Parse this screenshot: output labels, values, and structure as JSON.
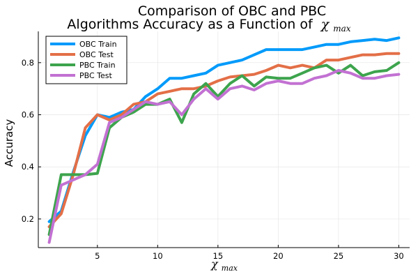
{
  "chart_data": {
    "type": "line",
    "title_line1": "Comparison of OBC and PBC",
    "title_line2": "Algorithms Accuracy as a Function of",
    "title_symbol": "χ",
    "title_symbol_sub": "max",
    "xlabel_symbol": "χ",
    "xlabel_sub": "max",
    "ylabel": "Accuracy",
    "xlim": [
      0.1,
      30.9
    ],
    "ylim": [
      0.09,
      0.92
    ],
    "xticks": [
      5,
      10,
      15,
      20,
      25,
      30
    ],
    "yticks": [
      0.2,
      0.4,
      0.6,
      0.8
    ],
    "xtick_labels": [
      "5",
      "10",
      "15",
      "20",
      "25",
      "30"
    ],
    "ytick_labels": [
      "0.2",
      "0.4",
      "0.6",
      "0.8"
    ],
    "grid": true,
    "legend_position": "top-left",
    "x": [
      1,
      2,
      3,
      4,
      5,
      6,
      7,
      8,
      9,
      10,
      11,
      12,
      13,
      14,
      15,
      16,
      17,
      18,
      19,
      20,
      21,
      22,
      23,
      24,
      25,
      26,
      27,
      28,
      29,
      30
    ],
    "series": [
      {
        "name": "OBC Train",
        "color": "#009AFA",
        "values": [
          0.19,
          0.23,
          0.38,
          0.52,
          0.6,
          0.59,
          0.61,
          0.62,
          0.67,
          0.7,
          0.74,
          0.74,
          0.75,
          0.76,
          0.79,
          0.8,
          0.81,
          0.83,
          0.85,
          0.85,
          0.85,
          0.85,
          0.86,
          0.87,
          0.87,
          0.88,
          0.885,
          0.89,
          0.885,
          0.895
        ]
      },
      {
        "name": "OBC Test",
        "color": "#E36F47",
        "values": [
          0.17,
          0.22,
          0.37,
          0.55,
          0.6,
          0.58,
          0.6,
          0.64,
          0.65,
          0.68,
          0.69,
          0.7,
          0.7,
          0.71,
          0.73,
          0.745,
          0.75,
          0.755,
          0.77,
          0.79,
          0.78,
          0.79,
          0.78,
          0.81,
          0.81,
          0.82,
          0.83,
          0.83,
          0.835,
          0.835
        ]
      },
      {
        "name": "PBC Train",
        "color": "#3DA44D",
        "values": [
          0.14,
          0.37,
          0.37,
          0.37,
          0.375,
          0.55,
          0.59,
          0.61,
          0.64,
          0.64,
          0.66,
          0.57,
          0.68,
          0.72,
          0.67,
          0.72,
          0.75,
          0.71,
          0.745,
          0.74,
          0.74,
          0.76,
          0.78,
          0.79,
          0.76,
          0.79,
          0.75,
          0.765,
          0.77,
          0.8
        ]
      },
      {
        "name": "PBC Test",
        "color": "#C271D2",
        "values": [
          0.11,
          0.33,
          0.35,
          0.37,
          0.41,
          0.57,
          0.59,
          0.62,
          0.65,
          0.64,
          0.65,
          0.6,
          0.66,
          0.7,
          0.66,
          0.7,
          0.71,
          0.695,
          0.72,
          0.73,
          0.72,
          0.72,
          0.74,
          0.75,
          0.77,
          0.76,
          0.74,
          0.74,
          0.75,
          0.755
        ]
      }
    ]
  }
}
